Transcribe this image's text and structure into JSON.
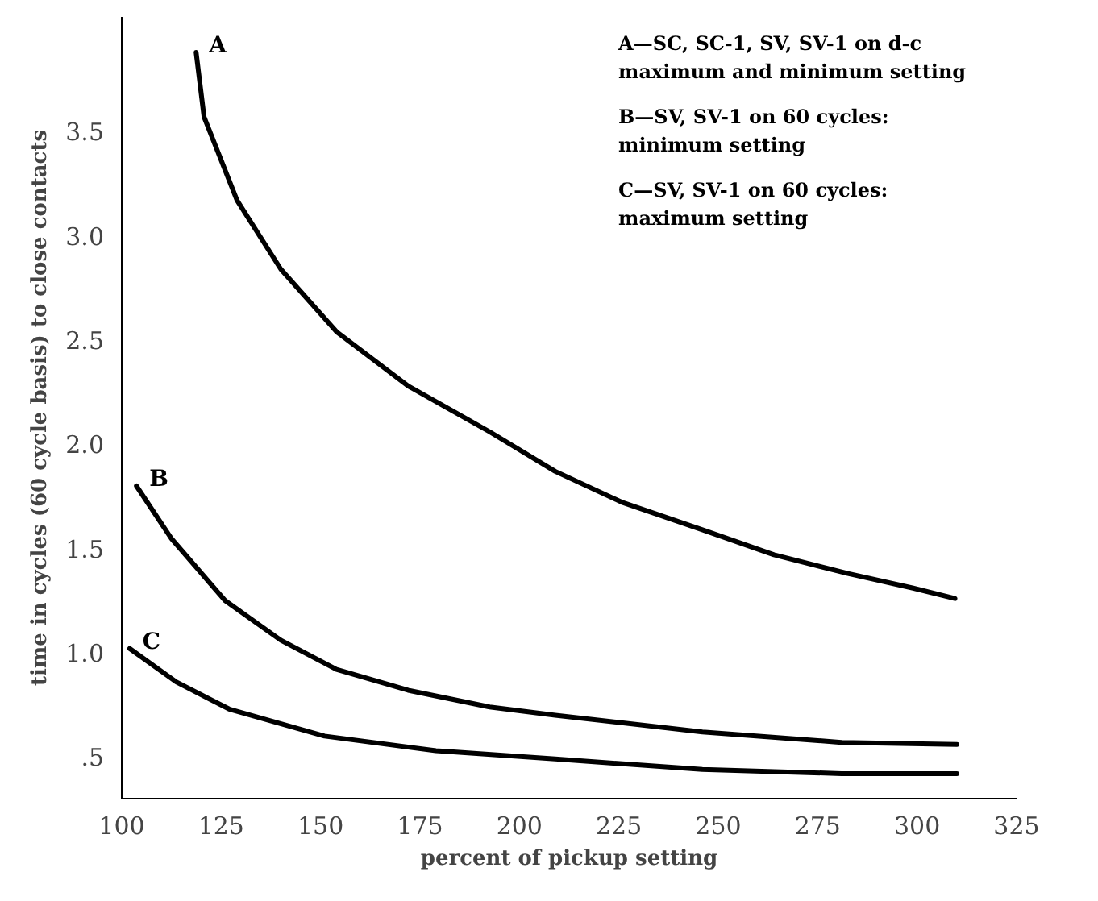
{
  "chart_data": {
    "type": "line",
    "xlabel": "percent of pickup setting",
    "ylabel": "time in cycles (60 cycle basis) to close contacts",
    "xlim": [
      100,
      325
    ],
    "ylim": [
      0.3,
      4.05
    ],
    "xticks": [
      100,
      125,
      150,
      175,
      200,
      225,
      250,
      275,
      300,
      325
    ],
    "yticks": [
      {
        "value": 0.5,
        "label": ".5"
      },
      {
        "value": 1.0,
        "label": "1.0"
      },
      {
        "value": 1.5,
        "label": "1.5"
      },
      {
        "value": 2.0,
        "label": "2.0"
      },
      {
        "value": 2.5,
        "label": "2.5"
      },
      {
        "value": 3.0,
        "label": "3.0"
      },
      {
        "value": 3.5,
        "label": "3.5"
      }
    ],
    "grid": false,
    "marker": "none",
    "line_style": "solid",
    "series": [
      {
        "name": "A",
        "color": "#000000",
        "x": [
          118.7,
          120.7,
          129,
          140,
          154,
          172,
          192.5,
          209,
          226,
          246,
          264,
          282.6,
          299,
          309.5
        ],
        "values": [
          3.88,
          3.57,
          3.17,
          2.84,
          2.54,
          2.28,
          2.06,
          1.87,
          1.72,
          1.59,
          1.47,
          1.38,
          1.31,
          1.26
        ]
      },
      {
        "name": "B",
        "color": "#000000",
        "x": [
          103.7,
          112.4,
          126,
          140,
          154,
          172,
          192.5,
          209,
          246,
          281,
          310
        ],
        "values": [
          1.8,
          1.55,
          1.25,
          1.06,
          0.92,
          0.82,
          0.74,
          0.7,
          0.62,
          0.57,
          0.56
        ]
      },
      {
        "name": "C",
        "color": "#000000",
        "x": [
          102,
          113.7,
          127,
          151,
          179,
          209,
          246,
          281,
          310
        ],
        "values": [
          1.02,
          0.86,
          0.73,
          0.6,
          0.53,
          0.49,
          0.44,
          0.42,
          0.42
        ]
      }
    ],
    "annotations": [
      "A—SC, SC-1, SV, SV-1 on d-c\n     maximum and minimum setting",
      "B—SV, SV-1 on 60 cycles:\n     minimum setting",
      "C—SV, SV-1 on 60 cycles:\n     maximum setting"
    ]
  }
}
